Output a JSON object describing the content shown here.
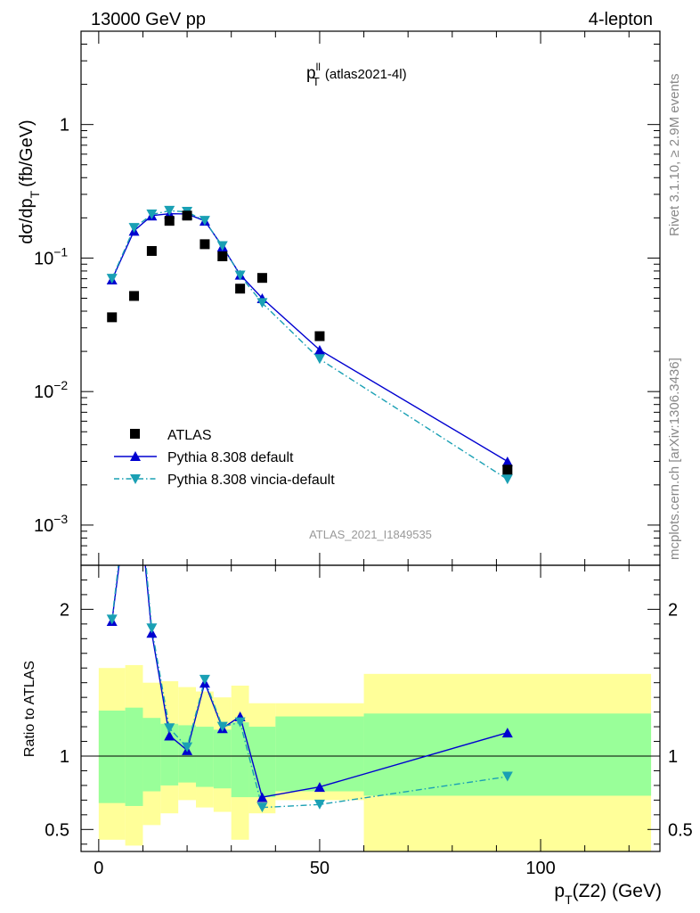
{
  "header": {
    "left": "13000 GeV pp",
    "right": "4-lepton"
  },
  "side_labels": {
    "rivet": "Rivet 3.1.10, ≥ 2.9M events",
    "mcplots": "mcplots.cern.ch [arXiv:1306.3436]"
  },
  "watermark": "ATLAS_2021_I1849535",
  "chart_data": {
    "type": "line",
    "title": "p_T^ll (atlas2021-4l)",
    "title_main": "p",
    "title_sub": "T",
    "title_sup": "ll",
    "title_rest": "(atlas2021-4l)",
    "xlabel": "p_T(Z2) (GeV)",
    "xlabel_main": "p",
    "xlabel_sub": "T",
    "xlabel_rest": "(Z2) (GeV)",
    "ylabel": "dσ/dp_T (fb/GeV)",
    "ylabel_main": "dσ/dp",
    "ylabel_sub": "T",
    "ylabel_rest": "(fb/GeV)",
    "ratio_ylabel": "Ratio to ATLAS",
    "xlim": [
      -4,
      127
    ],
    "ylim": [
      0.0005,
      5
    ],
    "yscale": "log",
    "ratio_ylim": [
      0.35,
      2.3
    ],
    "x_ticks": [
      "0",
      "50",
      "100"
    ],
    "y_ticks": [
      {
        "value": 1,
        "base": "1",
        "exp": ""
      },
      {
        "value": 0.1,
        "base": "10",
        "exp": "−1"
      },
      {
        "value": 0.01,
        "base": "10",
        "exp": "−2"
      },
      {
        "value": 0.001,
        "base": "10",
        "exp": "−3"
      }
    ],
    "ratio_ticks": [
      "0.5",
      "1",
      "2"
    ],
    "legend_position": "lower-left",
    "series": [
      {
        "name": "ATLAS",
        "color": "#000000",
        "marker": "square",
        "x": [
          3,
          8,
          12,
          16,
          20,
          24,
          28,
          32,
          37,
          50,
          92.5
        ],
        "values": [
          0.036,
          0.052,
          0.113,
          0.19,
          0.208,
          0.127,
          0.103,
          0.059,
          0.071,
          0.026,
          0.0026
        ]
      },
      {
        "name": "Pythia 8.308 default",
        "color": "#0000d0",
        "marker": "triangle-up",
        "x": [
          3,
          8,
          12,
          16,
          20,
          24,
          28,
          32,
          37,
          50,
          92.5
        ],
        "values": [
          0.069,
          0.16,
          0.208,
          0.215,
          0.214,
          0.19,
          0.122,
          0.075,
          0.05,
          0.0205,
          0.003
        ],
        "ratio": [
          1.92,
          3.1,
          1.84,
          1.14,
          1.04,
          1.5,
          1.19,
          1.27,
          0.72,
          0.79,
          1.16
        ]
      },
      {
        "name": "Pythia 8.308 vincia-default",
        "color": "#1aa0b4",
        "marker": "triangle-down",
        "x": [
          3,
          8,
          12,
          16,
          20,
          24,
          28,
          32,
          37,
          50,
          92.5
        ],
        "values": [
          0.07,
          0.168,
          0.212,
          0.226,
          0.222,
          0.19,
          0.123,
          0.074,
          0.046,
          0.0175,
          0.0022
        ],
        "ratio": [
          1.93,
          3.2,
          1.87,
          1.19,
          1.06,
          1.52,
          1.2,
          1.23,
          0.65,
          0.67,
          0.86
        ]
      }
    ],
    "uncertainty_bands": {
      "bins": [
        [
          0,
          6
        ],
        [
          6,
          10
        ],
        [
          10,
          14
        ],
        [
          14,
          18
        ],
        [
          18,
          22
        ],
        [
          22,
          26
        ],
        [
          26,
          30
        ],
        [
          30,
          34
        ],
        [
          34,
          40
        ],
        [
          40,
          60
        ],
        [
          60,
          125
        ]
      ],
      "inner": [
        [
          0.68,
          1.31
        ],
        [
          0.66,
          1.33
        ],
        [
          0.76,
          1.26
        ],
        [
          0.8,
          1.22
        ],
        [
          0.82,
          1.21
        ],
        [
          0.79,
          1.2
        ],
        [
          0.78,
          1.18
        ],
        [
          0.72,
          1.23
        ],
        [
          0.72,
          1.2
        ],
        [
          0.76,
          1.27
        ],
        [
          0.73,
          1.29
        ]
      ],
      "outer": [
        [
          0.43,
          1.6
        ],
        [
          0.39,
          1.62
        ],
        [
          0.53,
          1.5
        ],
        [
          0.61,
          1.51
        ],
        [
          0.7,
          1.47
        ],
        [
          0.65,
          1.44
        ],
        [
          0.62,
          1.4
        ],
        [
          0.43,
          1.48
        ],
        [
          0.61,
          1.36
        ],
        [
          0.7,
          1.36
        ],
        [
          0.35,
          1.56
        ]
      ],
      "inner_color": "#99ff99",
      "outer_color": "#ffff99"
    }
  }
}
